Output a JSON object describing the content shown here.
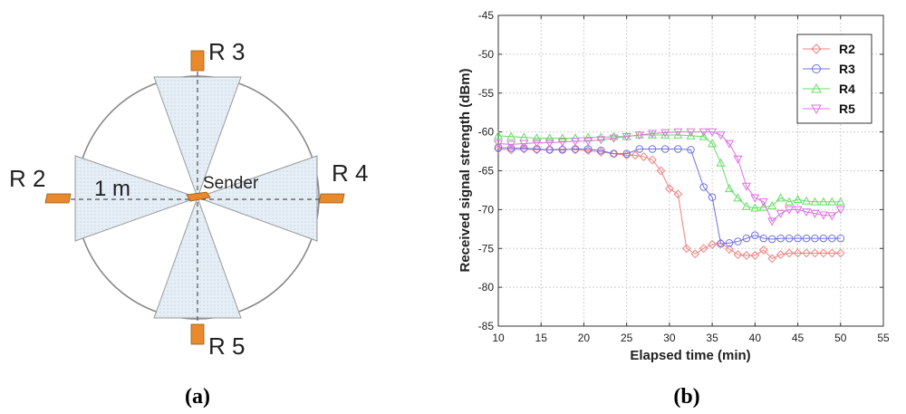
{
  "panel_a": {
    "caption_open": "(",
    "caption_letter": "a",
    "caption_close": ")",
    "receivers": {
      "r2": "R 2",
      "r3": "R 3",
      "r4": "R 4",
      "r5": "R 5"
    },
    "distance_label": "1 m",
    "sender_label": "Sender",
    "colors": {
      "circle": "#8a8a8a",
      "sector_fill": "#e3edf5",
      "sector_stroke": "#999999",
      "device": "#e8892c",
      "axis": "#555555"
    }
  },
  "panel_b": {
    "caption_open": "(",
    "caption_letter": "b",
    "caption_close": ")"
  },
  "chart_data": {
    "type": "line",
    "title": "",
    "xlabel": "Elapsed time (min)",
    "ylabel": "Received signal strength (dBm)",
    "xlim": [
      10,
      55
    ],
    "ylim": [
      -85,
      -45
    ],
    "xticks": [
      "10",
      "15",
      "20",
      "25",
      "30",
      "35",
      "40",
      "45",
      "50",
      "55"
    ],
    "yticks": [
      "-45",
      "-50",
      "-55",
      "-60",
      "-65",
      "-70",
      "-75",
      "-80",
      "-85"
    ],
    "grid": true,
    "legend": "top-right",
    "series": [
      {
        "name": "R2",
        "color": "#f08080",
        "marker": "diamond",
        "x": [
          10,
          11.5,
          13,
          14.5,
          16,
          17.5,
          19,
          20.5,
          22,
          23.5,
          25,
          26,
          27,
          28,
          29,
          30,
          31,
          32,
          33,
          34,
          35,
          36,
          37,
          38,
          39,
          40,
          41,
          42,
          43,
          44,
          45,
          46,
          47,
          48,
          49,
          50
        ],
        "y": [
          -62.2,
          -62.3,
          -62.2,
          -62.3,
          -62.3,
          -62.2,
          -62.3,
          -62.4,
          -62.6,
          -62.8,
          -63,
          -63,
          -63.2,
          -63.6,
          -65,
          -67.3,
          -68,
          -75,
          -75.7,
          -75,
          -74.5,
          -74.3,
          -75.1,
          -75.8,
          -75.9,
          -75.9,
          -75.2,
          -76.3,
          -75.8,
          -75.6,
          -75.6,
          -75.6,
          -75.6,
          -75.6,
          -75.6,
          -75.6
        ]
      },
      {
        "name": "R3",
        "color": "#7070e0",
        "marker": "circle",
        "x": [
          10,
          11.5,
          13,
          14.5,
          16,
          17.5,
          19,
          20.5,
          22,
          23.5,
          25,
          26.5,
          28,
          29.5,
          31,
          32.5,
          34,
          35,
          36,
          37,
          38,
          39,
          40,
          41,
          42,
          43,
          44,
          45,
          46,
          47,
          48,
          49,
          50
        ],
        "y": [
          -62,
          -62.1,
          -62.1,
          -62.2,
          -62.3,
          -62.3,
          -62.2,
          -62.2,
          -62.4,
          -62.8,
          -62.8,
          -62.2,
          -62.2,
          -62.2,
          -62.2,
          -62.3,
          -67.1,
          -68.4,
          -74.4,
          -74.3,
          -74.1,
          -73.7,
          -73.3,
          -73.7,
          -73.8,
          -73.7,
          -73.7,
          -73.7,
          -73.7,
          -73.7,
          -73.7,
          -73.7,
          -73.7
        ]
      },
      {
        "name": "R4",
        "color": "#66dd66",
        "marker": "triangle-up",
        "x": [
          10,
          11.5,
          13,
          14.5,
          16,
          17.5,
          19,
          20.5,
          22,
          23.5,
          25,
          26.5,
          28,
          29.5,
          31,
          32.5,
          34,
          35,
          36,
          37,
          38,
          39,
          40,
          41,
          42,
          43,
          44,
          45,
          46,
          47,
          48,
          49,
          50
        ],
        "y": [
          -60.5,
          -60.6,
          -60.7,
          -60.8,
          -60.8,
          -60.8,
          -60.8,
          -60.7,
          -60.7,
          -60.6,
          -60.6,
          -60.4,
          -60.4,
          -60.4,
          -60.4,
          -60.5,
          -60.6,
          -61.5,
          -64,
          -67.3,
          -68.5,
          -69.6,
          -69.8,
          -69.7,
          -69.5,
          -68.5,
          -69,
          -68.7,
          -68.9,
          -69,
          -69,
          -69,
          -69
        ]
      },
      {
        "name": "R5",
        "color": "#e070e0",
        "marker": "triangle-down",
        "x": [
          10,
          11.5,
          13,
          14.5,
          16,
          17.5,
          19,
          20.5,
          22,
          23.5,
          25,
          26.5,
          28,
          29.5,
          31,
          32.5,
          34,
          35,
          36,
          37,
          38,
          39,
          40,
          41,
          42,
          43,
          44,
          45,
          46,
          47,
          48,
          49,
          50
        ],
        "y": [
          -61.5,
          -61.6,
          -61.5,
          -61.4,
          -61.4,
          -61.3,
          -61.2,
          -61.2,
          -61,
          -60.8,
          -60.6,
          -60.4,
          -60.2,
          -60.1,
          -60,
          -60,
          -60,
          -60,
          -60.4,
          -61.5,
          -63.5,
          -67,
          -68.5,
          -69,
          -71.5,
          -70.5,
          -70,
          -70,
          -70.3,
          -70.5,
          -70.7,
          -70.8,
          -70
        ]
      }
    ]
  }
}
